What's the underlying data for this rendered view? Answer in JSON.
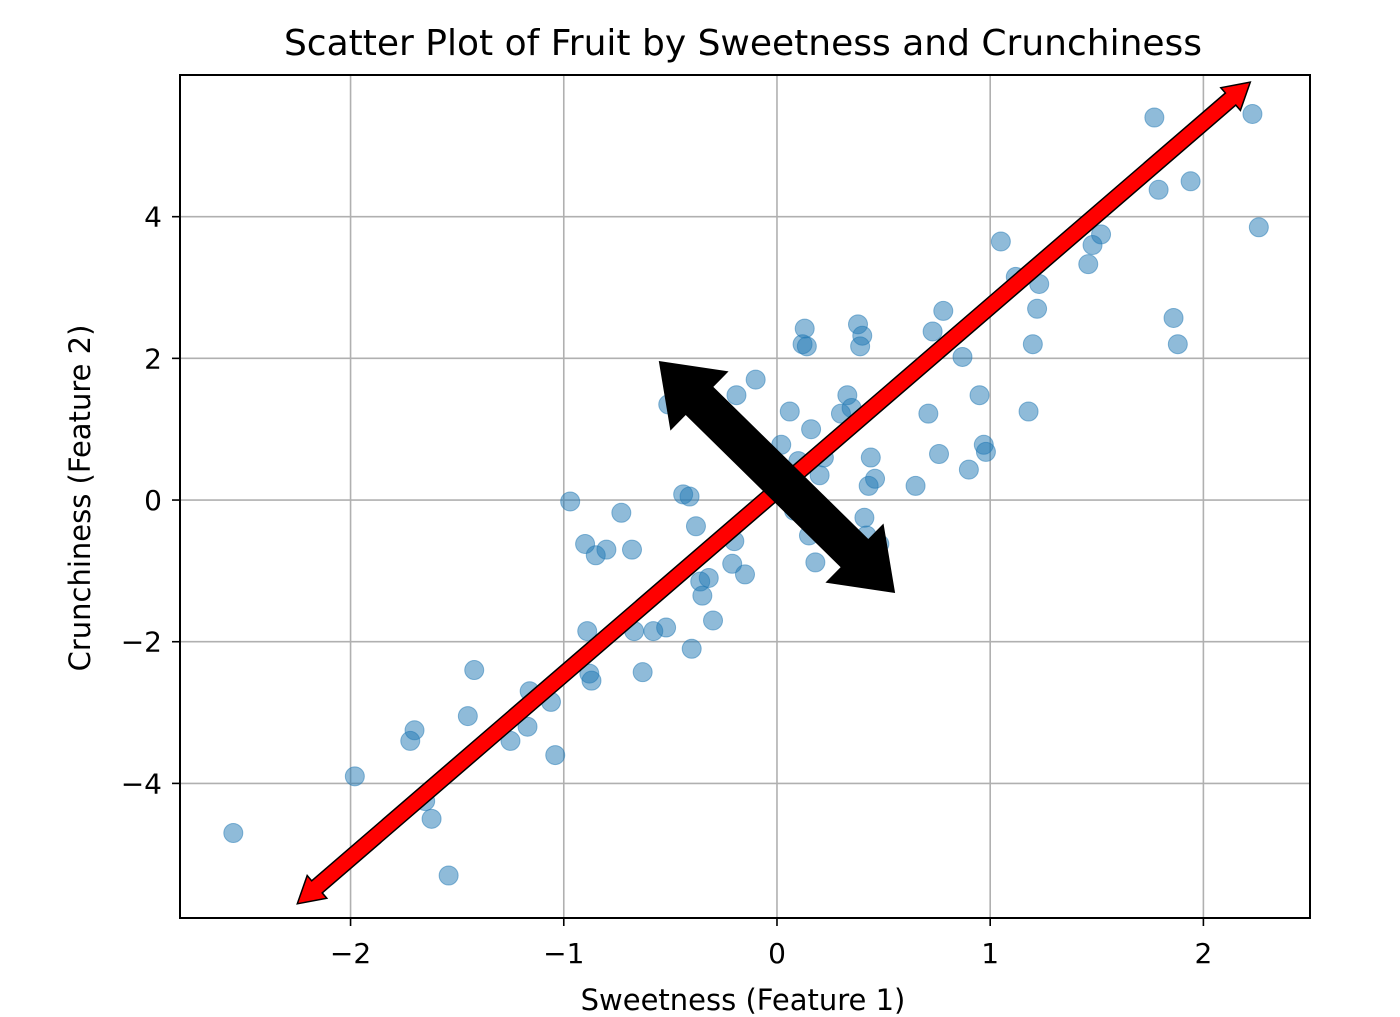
{
  "chart_data": {
    "type": "scatter",
    "title": "Scatter Plot of Fruit by Sweetness and Crunchiness",
    "xlabel": "Sweetness (Feature 1)",
    "ylabel": "Crunchiness (Feature 2)",
    "xlim": [
      -2.8,
      2.5
    ],
    "ylim": [
      -5.9,
      6.0
    ],
    "xticks": [
      -2,
      -1,
      0,
      1,
      2
    ],
    "yticks": [
      -4,
      -2,
      0,
      2,
      4
    ],
    "xtick_labels": [
      "−2",
      "−1",
      "0",
      "1",
      "2"
    ],
    "ytick_labels": [
      "−4",
      "−2",
      "0",
      "2",
      "4"
    ],
    "grid": true,
    "marker_color": "#1f77b4",
    "points": [
      [
        -2.55,
        -4.7
      ],
      [
        -1.98,
        -3.9
      ],
      [
        -1.72,
        -3.4
      ],
      [
        -1.7,
        -3.25
      ],
      [
        -1.65,
        -4.25
      ],
      [
        -1.62,
        -4.5
      ],
      [
        -1.54,
        -5.3
      ],
      [
        -1.45,
        -3.05
      ],
      [
        -1.42,
        -2.4
      ],
      [
        -1.25,
        -3.4
      ],
      [
        -1.17,
        -3.2
      ],
      [
        -1.16,
        -2.7
      ],
      [
        -1.06,
        -2.85
      ],
      [
        -1.04,
        -3.6
      ],
      [
        -0.97,
        -0.02
      ],
      [
        -0.9,
        -0.62
      ],
      [
        -0.89,
        -1.85
      ],
      [
        -0.88,
        -2.45
      ],
      [
        -0.87,
        -2.55
      ],
      [
        -0.85,
        -0.78
      ],
      [
        -0.8,
        -0.7
      ],
      [
        -0.73,
        -0.18
      ],
      [
        -0.68,
        -0.7
      ],
      [
        -0.67,
        -1.85
      ],
      [
        -0.63,
        -2.43
      ],
      [
        -0.58,
        -1.85
      ],
      [
        -0.52,
        -1.8
      ],
      [
        -0.51,
        1.35
      ],
      [
        -0.46,
        1.6
      ],
      [
        -0.44,
        0.08
      ],
      [
        -0.41,
        0.05
      ],
      [
        -0.4,
        -2.1
      ],
      [
        -0.38,
        -0.37
      ],
      [
        -0.37,
        1.25
      ],
      [
        -0.36,
        -1.15
      ],
      [
        -0.35,
        -1.35
      ],
      [
        -0.32,
        -1.1
      ],
      [
        -0.3,
        -1.7
      ],
      [
        -0.21,
        -0.9
      ],
      [
        -0.2,
        -0.58
      ],
      [
        -0.19,
        1.48
      ],
      [
        -0.15,
        -1.05
      ],
      [
        -0.1,
        1.7
      ],
      [
        -0.05,
        0.65
      ],
      [
        -0.03,
        0.5
      ],
      [
        0.0,
        0.25
      ],
      [
        0.02,
        0.78
      ],
      [
        0.06,
        1.25
      ],
      [
        0.08,
        -0.15
      ],
      [
        0.1,
        0.55
      ],
      [
        0.12,
        2.2
      ],
      [
        0.13,
        2.42
      ],
      [
        0.14,
        2.17
      ],
      [
        0.15,
        -0.5
      ],
      [
        0.16,
        1.0
      ],
      [
        0.18,
        -0.88
      ],
      [
        0.2,
        0.35
      ],
      [
        0.22,
        0.6
      ],
      [
        0.3,
        1.22
      ],
      [
        0.33,
        1.48
      ],
      [
        0.35,
        1.3
      ],
      [
        0.38,
        2.48
      ],
      [
        0.39,
        2.17
      ],
      [
        0.4,
        2.32
      ],
      [
        0.41,
        -0.25
      ],
      [
        0.42,
        -0.5
      ],
      [
        0.43,
        0.2
      ],
      [
        0.44,
        0.6
      ],
      [
        0.46,
        0.3
      ],
      [
        0.48,
        -0.62
      ],
      [
        0.65,
        0.2
      ],
      [
        0.71,
        1.22
      ],
      [
        0.73,
        2.38
      ],
      [
        0.76,
        0.65
      ],
      [
        0.78,
        2.67
      ],
      [
        0.87,
        2.02
      ],
      [
        0.9,
        0.43
      ],
      [
        0.95,
        1.48
      ],
      [
        0.97,
        0.78
      ],
      [
        0.98,
        0.68
      ],
      [
        1.05,
        3.65
      ],
      [
        1.12,
        3.15
      ],
      [
        1.18,
        1.25
      ],
      [
        1.2,
        2.2
      ],
      [
        1.22,
        2.7
      ],
      [
        1.23,
        3.05
      ],
      [
        1.46,
        3.33
      ],
      [
        1.48,
        3.6
      ],
      [
        1.52,
        3.75
      ],
      [
        1.77,
        5.4
      ],
      [
        1.79,
        4.38
      ],
      [
        1.86,
        2.57
      ],
      [
        1.88,
        2.2
      ],
      [
        1.94,
        4.5
      ],
      [
        2.23,
        5.45
      ],
      [
        2.26,
        3.85
      ]
    ],
    "annotations": [
      {
        "type": "double-arrow",
        "color": "#ff0000",
        "from": [
          -2.25,
          -5.7
        ],
        "to": [
          2.22,
          5.9
        ]
      },
      {
        "type": "double-arrow",
        "color": "#000000",
        "from": [
          -0.55,
          1.95
        ],
        "to": [
          0.55,
          -1.3
        ]
      }
    ]
  }
}
